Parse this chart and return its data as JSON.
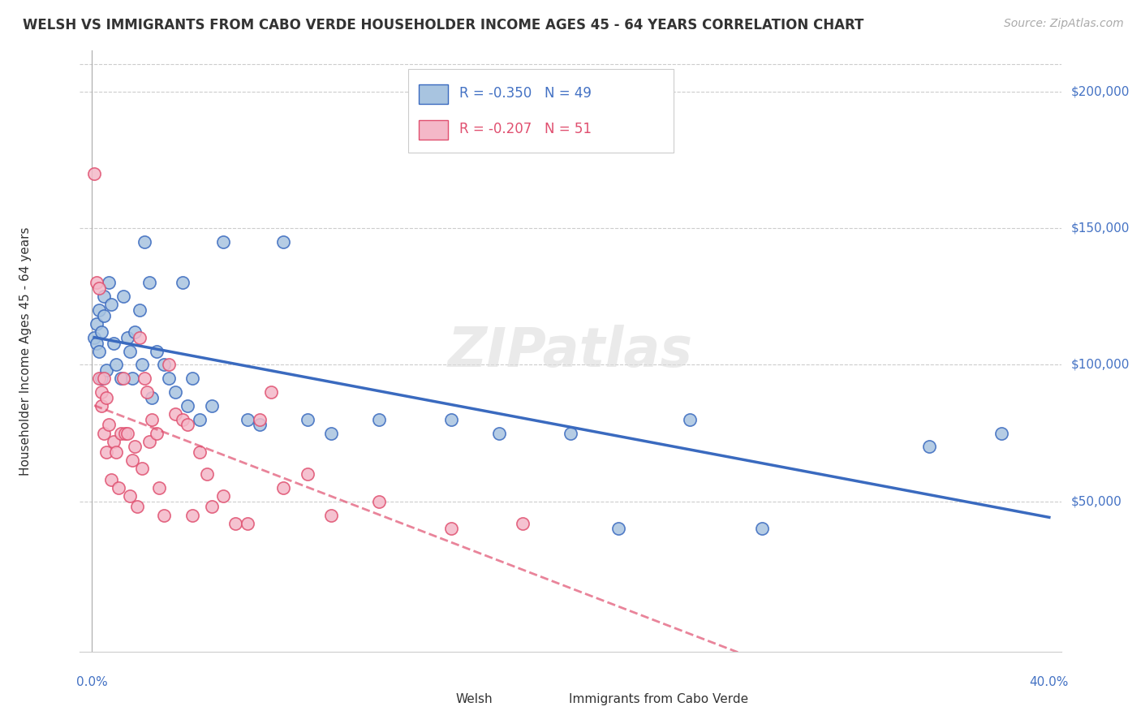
{
  "title": "WELSH VS IMMIGRANTS FROM CABO VERDE HOUSEHOLDER INCOME AGES 45 - 64 YEARS CORRELATION CHART",
  "source": "Source: ZipAtlas.com",
  "ylabel": "Householder Income Ages 45 - 64 years",
  "ytick_values": [
    50000,
    100000,
    150000,
    200000
  ],
  "ytick_labels": [
    "$50,000",
    "$100,000",
    "$150,000",
    "$200,000"
  ],
  "welsh_R": -0.35,
  "welsh_N": 49,
  "cabo_R": -0.207,
  "cabo_N": 51,
  "welsh_color": "#a8c4e0",
  "welsh_line_color": "#3a6abf",
  "cabo_color": "#f4b8c8",
  "cabo_line_color": "#e05070",
  "welsh_x": [
    0.001,
    0.002,
    0.002,
    0.003,
    0.003,
    0.004,
    0.004,
    0.005,
    0.005,
    0.006,
    0.007,
    0.008,
    0.009,
    0.01,
    0.012,
    0.013,
    0.015,
    0.016,
    0.017,
    0.018,
    0.02,
    0.021,
    0.022,
    0.024,
    0.025,
    0.027,
    0.03,
    0.032,
    0.035,
    0.038,
    0.04,
    0.042,
    0.045,
    0.05,
    0.055,
    0.065,
    0.07,
    0.08,
    0.09,
    0.1,
    0.12,
    0.15,
    0.17,
    0.2,
    0.22,
    0.25,
    0.28,
    0.35,
    0.38
  ],
  "welsh_y": [
    110000,
    115000,
    108000,
    120000,
    105000,
    112000,
    95000,
    125000,
    118000,
    98000,
    130000,
    122000,
    108000,
    100000,
    95000,
    125000,
    110000,
    105000,
    95000,
    112000,
    120000,
    100000,
    145000,
    130000,
    88000,
    105000,
    100000,
    95000,
    90000,
    130000,
    85000,
    95000,
    80000,
    85000,
    145000,
    80000,
    78000,
    145000,
    80000,
    75000,
    80000,
    80000,
    75000,
    75000,
    40000,
    80000,
    40000,
    70000,
    75000
  ],
  "cabo_x": [
    0.001,
    0.002,
    0.003,
    0.003,
    0.004,
    0.004,
    0.005,
    0.005,
    0.006,
    0.006,
    0.007,
    0.008,
    0.009,
    0.01,
    0.011,
    0.012,
    0.013,
    0.014,
    0.015,
    0.016,
    0.017,
    0.018,
    0.019,
    0.02,
    0.021,
    0.022,
    0.023,
    0.024,
    0.025,
    0.027,
    0.028,
    0.03,
    0.032,
    0.035,
    0.038,
    0.04,
    0.042,
    0.045,
    0.048,
    0.05,
    0.055,
    0.06,
    0.065,
    0.07,
    0.075,
    0.08,
    0.09,
    0.1,
    0.12,
    0.15,
    0.18
  ],
  "cabo_y": [
    170000,
    130000,
    128000,
    95000,
    90000,
    85000,
    95000,
    75000,
    88000,
    68000,
    78000,
    58000,
    72000,
    68000,
    55000,
    75000,
    95000,
    75000,
    75000,
    52000,
    65000,
    70000,
    48000,
    110000,
    62000,
    95000,
    90000,
    72000,
    80000,
    75000,
    55000,
    45000,
    100000,
    82000,
    80000,
    78000,
    45000,
    68000,
    60000,
    48000,
    52000,
    42000,
    42000,
    80000,
    90000,
    55000,
    60000,
    45000,
    50000,
    40000,
    42000
  ]
}
